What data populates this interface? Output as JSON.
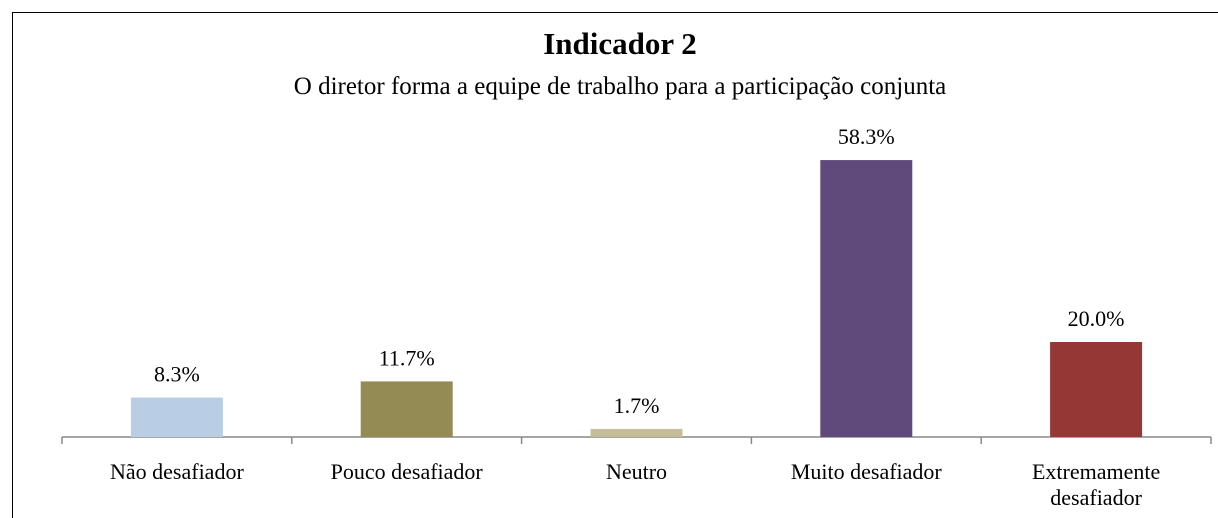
{
  "chart_data": {
    "type": "bar",
    "title": "Indicador 2",
    "subtitle": "O diretor forma a equipe de trabalho para a participação conjunta",
    "categories": [
      "Não desafiador",
      "Pouco desafiador",
      "Neutro",
      "Muito desafiador",
      "Extremamente desafiador"
    ],
    "values": [
      8.3,
      11.7,
      1.7,
      58.3,
      20.0
    ],
    "value_labels": [
      "8.3%",
      "11.7%",
      "1.7%",
      "58.3%",
      "20.0%"
    ],
    "colors": [
      "#b9cde5",
      "#948a54",
      "#c4bd97",
      "#604a7b",
      "#953735"
    ],
    "ylim": [
      0,
      60
    ]
  }
}
